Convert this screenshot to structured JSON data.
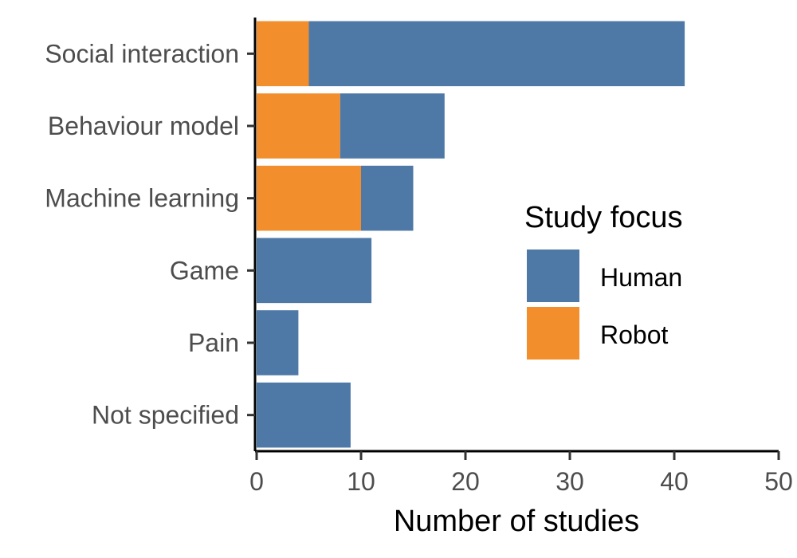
{
  "chart_data": {
    "type": "bar",
    "orientation": "horizontal",
    "stacked": true,
    "categories": [
      "Social interaction",
      "Behaviour model",
      "Machine learning",
      "Game",
      "Pain",
      "Not specified"
    ],
    "series": [
      {
        "name": "Human",
        "color": "#4e79a7",
        "values": [
          36,
          10,
          5,
          11,
          4,
          9
        ]
      },
      {
        "name": "Robot",
        "color": "#f28e2b",
        "values": [
          5,
          8,
          10,
          0,
          0,
          0
        ]
      }
    ],
    "xlabel": "Number of studies",
    "ylabel": "",
    "xlim": [
      0,
      50
    ],
    "xticks": [
      "0",
      "10",
      "20",
      "30",
      "40",
      "50"
    ],
    "legend": {
      "title": "Study focus",
      "placement": "right"
    },
    "grid": false
  }
}
